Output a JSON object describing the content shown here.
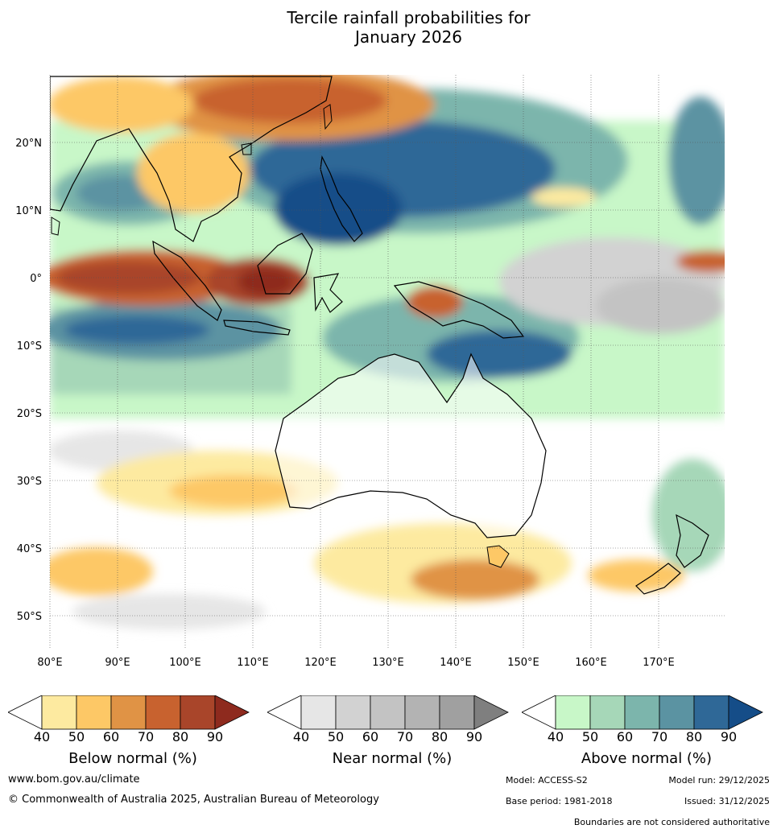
{
  "title_line1": "Tercile rainfall probabilities for",
  "title_line2": "January 2026",
  "lat_labels": [
    "20°N",
    "10°N",
    "0°",
    "10°S",
    "20°S",
    "30°S",
    "40°S",
    "50°S"
  ],
  "lon_labels": [
    "80°E",
    "90°E",
    "100°E",
    "110°E",
    "120°E",
    "130°E",
    "140°E",
    "150°E",
    "160°E",
    "170°E"
  ],
  "colorbars": [
    {
      "label": "Below normal (%)",
      "ticks": [
        "40",
        "50",
        "60",
        "70",
        "80",
        "90"
      ],
      "colors": [
        "#fdeaa0",
        "#fdc866",
        "#e09345",
        "#c8622f",
        "#a9452a",
        "#8e2a1e"
      ]
    },
    {
      "label": "Near normal (%)",
      "ticks": [
        "40",
        "50",
        "60",
        "70",
        "80",
        "90"
      ],
      "colors": [
        "#e6e6e6",
        "#d2d2d2",
        "#c3c3c3",
        "#b3b3b3",
        "#a0a0a0",
        "#7f7f7f"
      ]
    },
    {
      "label": "Above normal (%)",
      "ticks": [
        "40",
        "50",
        "60",
        "70",
        "80",
        "90"
      ],
      "colors": [
        "#c8f7c8",
        "#a6d7b8",
        "#7cb5ac",
        "#5b93a2",
        "#2f6897",
        "#154d88"
      ]
    }
  ],
  "footer": {
    "website": "www.bom.gov.au/climate",
    "copyright": "© Commonwealth of Australia 2025, Australian Bureau of Meteorology",
    "model": "Model: ACCESS-S2",
    "model_run": "Model run: 29/12/2025",
    "base_period": "Base period: 1981-2018",
    "issued": "Issued: 31/12/2025",
    "disclaimer": "Boundaries are not considered authoritative"
  },
  "colors": {
    "coast": "#000000",
    "grid": "#555555"
  }
}
